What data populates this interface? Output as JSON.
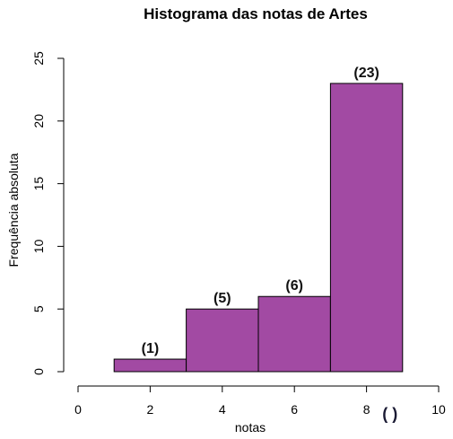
{
  "chart_data": {
    "type": "bar",
    "title": "Histograma das notas de Artes",
    "xlabel": "notas",
    "ylabel": "Frequência absoluta",
    "bins": [
      [
        1,
        3
      ],
      [
        3,
        5
      ],
      [
        5,
        7
      ],
      [
        7,
        9
      ]
    ],
    "values": [
      1,
      5,
      6,
      23
    ],
    "data_labels": [
      "(1)",
      "(5)",
      "(6)",
      "(23)"
    ],
    "xlim": [
      0,
      10
    ],
    "ylim": [
      0,
      25
    ],
    "x_ticks": [
      0,
      2,
      4,
      6,
      8,
      10
    ],
    "y_ticks": [
      0,
      5,
      10,
      15,
      20,
      25
    ],
    "grid": false,
    "bar_color": "#A24AA3",
    "annotations": [
      {
        "text": "(   )",
        "x": 8.65,
        "y": -3.8
      }
    ]
  }
}
